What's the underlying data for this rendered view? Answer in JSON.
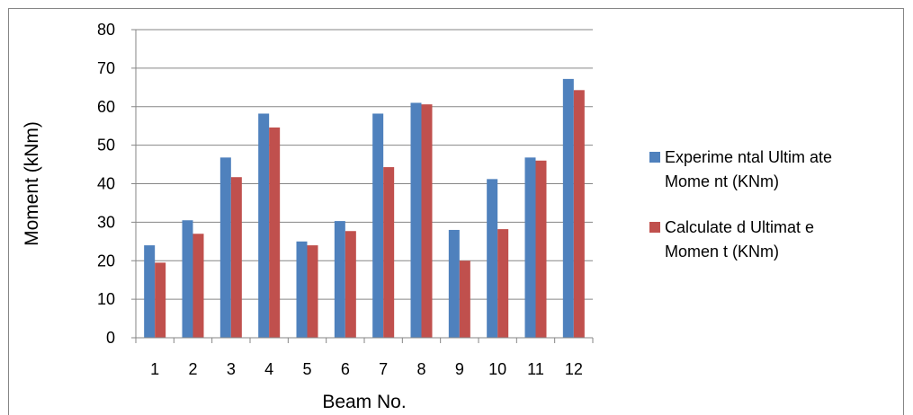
{
  "chart_data": {
    "type": "bar",
    "categories": [
      "1",
      "2",
      "3",
      "4",
      "5",
      "6",
      "7",
      "8",
      "9",
      "10",
      "11",
      "12"
    ],
    "series": [
      {
        "name_lines": [
          "Experime ntal Ultim ate",
          "Mome nt (KNm)"
        ],
        "values": [
          24,
          30.5,
          46.8,
          58.2,
          25,
          30.3,
          58.2,
          61,
          28,
          41.2,
          46.8,
          67.2
        ]
      },
      {
        "name_lines": [
          "Calculate d Ultimat e",
          "Momen t (KNm)"
        ],
        "values": [
          19.5,
          27,
          41.7,
          54.6,
          24,
          27.7,
          44.3,
          60.6,
          20,
          28.2,
          46,
          64.3
        ]
      }
    ],
    "colors": [
      "#4f81bd",
      "#c0504d"
    ],
    "xlabel": "Beam No.",
    "ylabel": "Moment (kNm)",
    "ylim": [
      0,
      80
    ],
    "yticks": [
      "0",
      "10",
      "20",
      "30",
      "40",
      "50",
      "60",
      "70",
      "80"
    ],
    "grid": true,
    "legend_position": "right"
  }
}
